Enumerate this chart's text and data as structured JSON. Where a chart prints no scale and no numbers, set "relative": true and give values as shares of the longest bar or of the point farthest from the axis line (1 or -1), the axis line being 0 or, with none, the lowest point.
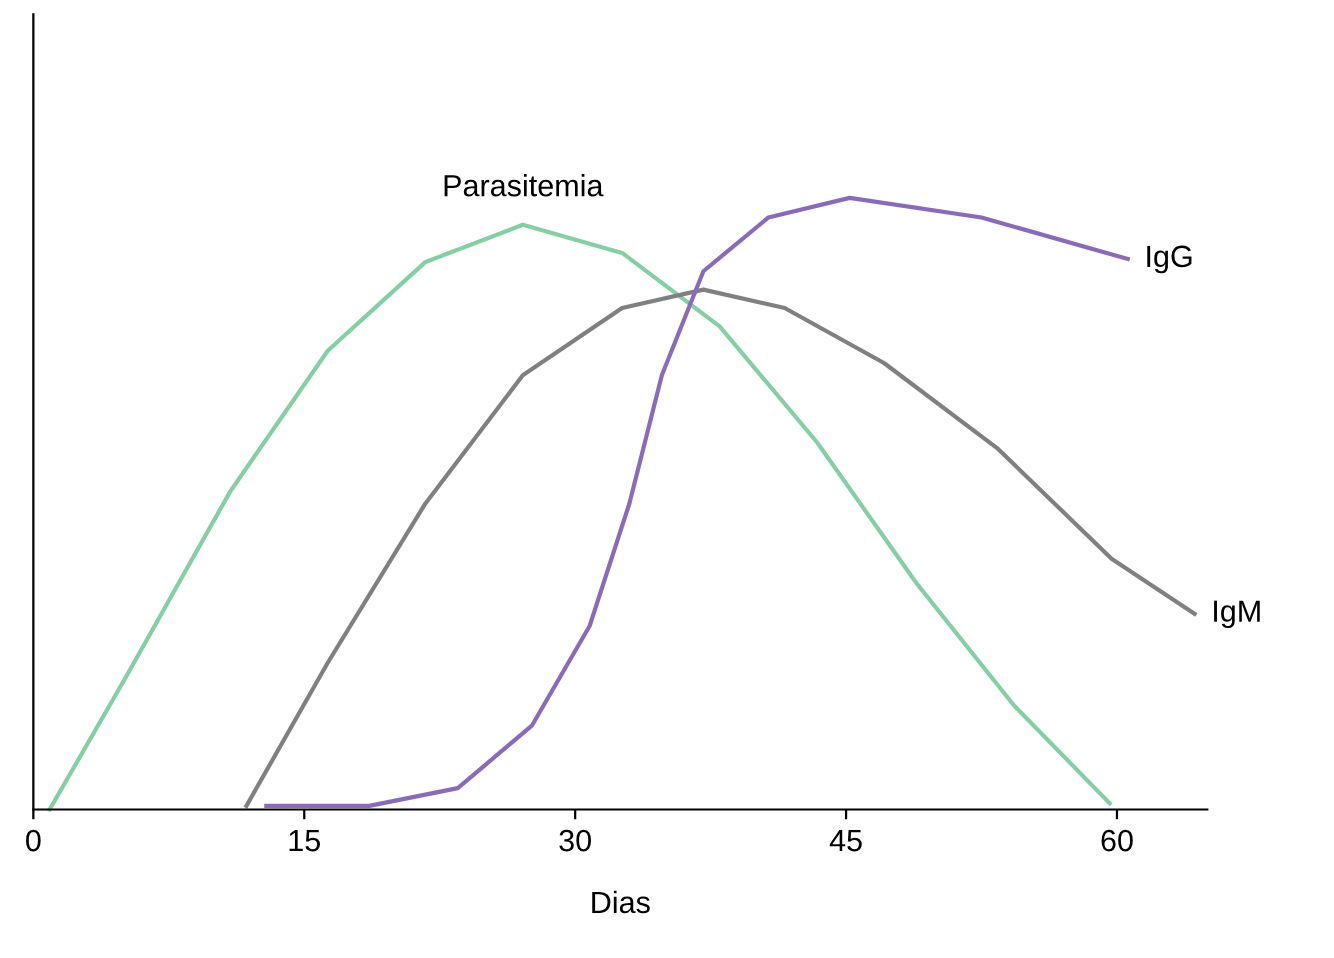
{
  "chart_data": {
    "type": "line",
    "relative": true,
    "xlabel": "Dias",
    "xlim": [
      0,
      65
    ],
    "xticks": [
      0,
      15,
      30,
      45,
      60
    ],
    "grid": false,
    "legend": false,
    "marker": "none",
    "line_style": "solid",
    "series": [
      {
        "name": "Parasitemia",
        "color": "#86cfa3",
        "x": [
          0.9,
          5,
          10.9,
          16.3,
          21.7,
          27.1,
          32.6,
          38,
          43.4,
          48.9,
          54.3,
          59.6
        ],
        "values": [
          0,
          0.21,
          0.52,
          0.75,
          0.895,
          0.956,
          0.91,
          0.79,
          0.6,
          0.37,
          0.17,
          0.01
        ]
      },
      {
        "name": "IgM",
        "color": "#808080",
        "x": [
          11.8,
          16.3,
          21.7,
          27.1,
          32.6,
          37.1,
          41.6,
          47.1,
          53.4,
          59.7,
          64.3
        ],
        "values": [
          0.006,
          0.24,
          0.5,
          0.71,
          0.82,
          0.85,
          0.82,
          0.73,
          0.59,
          0.41,
          0.32
        ]
      },
      {
        "name": "IgG",
        "color": "#8a6bb8",
        "x": [
          12.9,
          18.6,
          23.5,
          27.6,
          30.8,
          33,
          34.8,
          37.1,
          40.7,
          45.2,
          52.5,
          60.6
        ],
        "values": [
          0.006,
          0.006,
          0.035,
          0.137,
          0.3,
          0.5,
          0.71,
          0.88,
          0.968,
          1,
          0.968,
          0.9
        ]
      }
    ]
  }
}
